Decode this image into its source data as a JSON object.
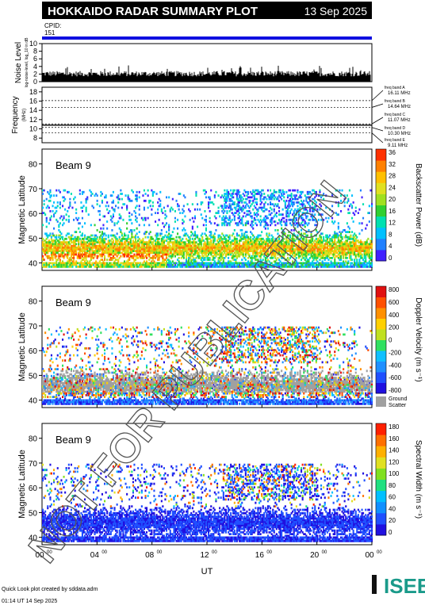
{
  "header": {
    "title": "HOKKAIDO RADAR SUMMARY PLOT",
    "date": "13 Sep 2025",
    "cpid_label": "CPID:",
    "cpid_value": "151"
  },
  "footer": {
    "line1": "Quick Look plot created by sddata.adm",
    "line2": "01:14 UT 14 Sep 2025",
    "logo_text": "ISEE"
  },
  "watermark": "NOT FOR PUBLICATION",
  "colors": {
    "accent_blue": "#1010e0",
    "ground_scatter": "#a0a0a0"
  },
  "chart_data": [
    {
      "id": "noise",
      "type": "bar",
      "ylabel": "Noise Level",
      "ylabel_sub": "log-noise-level, log_10 in dB",
      "ylim": [
        0,
        10
      ],
      "yticks": [
        "0",
        "2",
        "4",
        "6",
        "8",
        "10"
      ],
      "x_hours": [
        0,
        24
      ],
      "typical_level": 1.4
    },
    {
      "id": "frequency",
      "type": "line",
      "ylabel": "Frequency",
      "ylabel_unit": "(MHz)",
      "ylim": [
        7,
        19
      ],
      "yticks": [
        "8",
        "10",
        "12",
        "14",
        "16",
        "18"
      ],
      "bands": [
        {
          "name": "freq band A",
          "freq": "16.11 MHz",
          "value": 16.11
        },
        {
          "name": "freq band B",
          "freq": "14.64 MHz",
          "value": 14.64
        },
        {
          "name": "freq band C",
          "freq": "11.07 MHz",
          "value": 11.07
        },
        {
          "name": "freq band D",
          "freq": "10.30 MHz",
          "value": 10.3
        },
        {
          "name": "freq band E",
          "freq": "9.11 MHz",
          "value": 9.11
        }
      ],
      "trace_value": 10.8
    },
    {
      "id": "power",
      "type": "heatmap",
      "beam_label": "Beam  9",
      "ylabel": "Magnetic Latitude",
      "ylim": [
        37,
        86
      ],
      "yticks": [
        "40",
        "50",
        "60",
        "70",
        "80"
      ],
      "colorbar_label": "Backscatter Power (dB)",
      "colorbar_ticks": [
        "0",
        "4",
        "8",
        "12",
        "16",
        "20",
        "24",
        "28",
        "32",
        "36"
      ]
    },
    {
      "id": "velocity",
      "type": "heatmap",
      "beam_label": "Beam  9",
      "ylabel": "Magnetic Latitude",
      "ylim": [
        37,
        86
      ],
      "yticks": [
        "40",
        "50",
        "60",
        "70",
        "80"
      ],
      "colorbar_label": "Doppler Velocity (m s⁻¹)",
      "colorbar_ticks": [
        "-800",
        "-600",
        "-400",
        "-200",
        "0",
        "200",
        "400",
        "600",
        "800"
      ],
      "ground_scatter_label_1": "Ground",
      "ground_scatter_label_2": "Scatter"
    },
    {
      "id": "width",
      "type": "heatmap",
      "beam_label": "Beam  9",
      "ylabel": "Magnetic Latitude",
      "ylim": [
        37,
        86
      ],
      "yticks": [
        "40",
        "50",
        "60",
        "70",
        "80"
      ],
      "colorbar_label": "Spectral Width (m s⁻¹)",
      "colorbar_ticks": [
        "0",
        "20",
        "40",
        "60",
        "80",
        "100",
        "120",
        "140",
        "160",
        "180"
      ]
    }
  ],
  "x_axis": {
    "label": "UT",
    "hours": [
      0,
      4,
      8,
      12,
      16,
      20,
      24
    ],
    "tick_labels": [
      "00",
      "04",
      "08",
      "12",
      "16",
      "20",
      "00"
    ],
    "tick_sup": "00"
  }
}
